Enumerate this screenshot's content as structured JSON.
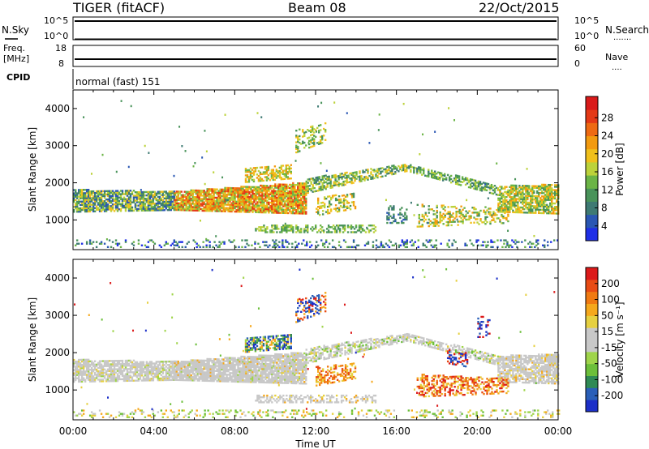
{
  "header": {
    "title": "TIGER (fitACF)",
    "beam": "Beam 08",
    "date": "22/Oct/2015"
  },
  "panels": {
    "sky": {
      "left_label": "N.Sky",
      "right_label": "N.Search",
      "ticks_left": [
        "10^5",
        "10^0"
      ],
      "ticks_right": [
        "10^5",
        "10^0"
      ],
      "dots": "......."
    },
    "freq": {
      "left_label": "Freq.",
      "left_unit": "[MHz]",
      "right_label": "Nave",
      "ticks_left": [
        "18",
        "8"
      ],
      "ticks_right": [
        "60",
        "0"
      ],
      "dots": "...."
    },
    "cpid": {
      "label": "CPID",
      "value": "normal (fast) 151"
    }
  },
  "chart_data": [
    {
      "type": "heatmap",
      "name": "power",
      "ylabel": "Slant Range [km]",
      "xlabel": "",
      "ylim": [
        200,
        4500
      ],
      "xlim": [
        0,
        24
      ],
      "y_ticks": [
        1000,
        2000,
        3000,
        4000
      ],
      "x_ticks": [
        0,
        4,
        8,
        12,
        16,
        20,
        24
      ],
      "colorbar": {
        "label": "Power [dB]",
        "ticks": [
          "4",
          "8",
          "12",
          "16",
          "20",
          "24",
          "28"
        ],
        "colors": [
          "#1f2fe6",
          "#2a57b3",
          "#3e7a73",
          "#49935a",
          "#6bb446",
          "#bcd23a",
          "#f0c01b",
          "#f29a0f",
          "#ee6a12",
          "#e43916",
          "#d91a1a"
        ]
      }
    },
    {
      "type": "heatmap",
      "name": "velocity",
      "ylabel": "Slant Range [km]",
      "xlabel": "Time UT",
      "ylim": [
        200,
        4500
      ],
      "xlim": [
        0,
        24
      ],
      "y_ticks": [
        1000,
        2000,
        3000,
        4000
      ],
      "x_ticks": [
        0,
        4,
        8,
        12,
        16,
        20,
        24
      ],
      "x_tick_labels": [
        "00:00",
        "04:00",
        "08:00",
        "12:00",
        "16:00",
        "20:00",
        "00:00"
      ],
      "colorbar": {
        "label": "Velocity [m s⁻¹]",
        "ticks": [
          "200",
          "100",
          "50",
          "15",
          "-15",
          "-50",
          "-100",
          "-200"
        ],
        "colors": [
          "#1c2fc8",
          "#2a5fb8",
          "#2f8a55",
          "#6cbf3a",
          "#9fd44a",
          "#c8c8c8",
          "#c8c8c8",
          "#e6d040",
          "#f5a81c",
          "#f07a12",
          "#e84b14",
          "#dc1a1a"
        ]
      }
    }
  ]
}
